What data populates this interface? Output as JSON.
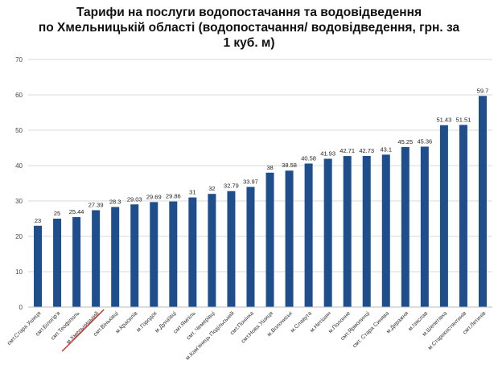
{
  "chart_data": {
    "type": "bar",
    "title_lines": [
      "Тарифи на послуги водопостачання та водовідведення",
      "по Хмельницькій області (водопостачання/ водовідведення, грн. за",
      "1 куб. м)"
    ],
    "categories": [
      "смт.Стара Ушиця",
      "смт.Білогір'я",
      "смт.Теофіполь",
      "м.Хмельницький",
      "смт.Віньківці",
      "м.Красилів",
      "м.Городок",
      "м.Дунаївці",
      "смт.Ямпіль",
      "смт. Чемерівці",
      "м.Кам'янець Подільський",
      "смт.Понінка",
      "смт.Нова Ушиця",
      "м.Волочиськ",
      "м.Славута",
      "м.Нетішин",
      "м.Полонне",
      "смт.Ярмолинці",
      "смт. Стара Синява",
      "м.Деражня",
      "м.Ізяслав",
      "м.Шепетівка",
      "м.Старокостянтинів",
      "смт.Летичів"
    ],
    "values": [
      23,
      25,
      25.44,
      27.39,
      28.3,
      29.03,
      29.69,
      29.86,
      31,
      32,
      32.79,
      33.97,
      38,
      38.58,
      40.58,
      41.93,
      42.71,
      42.73,
      43.1,
      45.25,
      45.36,
      51.43,
      51.51,
      59.7
    ],
    "value_labels": [
      "23",
      "25",
      "25.44",
      "27.39",
      "28.3",
      "29.03",
      "29.69",
      "29.86",
      "31",
      "32",
      "32.79",
      "33.97",
      "38",
      "38.58",
      "40.58",
      "41.93",
      "42.71",
      "42.73",
      "43.1",
      "45.25",
      "45.36",
      "51.43",
      "51.51",
      "59.7"
    ],
    "yticks": [
      "0",
      "10",
      "20",
      "30",
      "40",
      "50",
      "60",
      "70"
    ],
    "ylim": [
      0,
      70
    ],
    "grid": true,
    "highlighted_category": "м.Хмельницький",
    "bar_color": "#1f4e8c",
    "highlight_color": "#d0312d"
  }
}
